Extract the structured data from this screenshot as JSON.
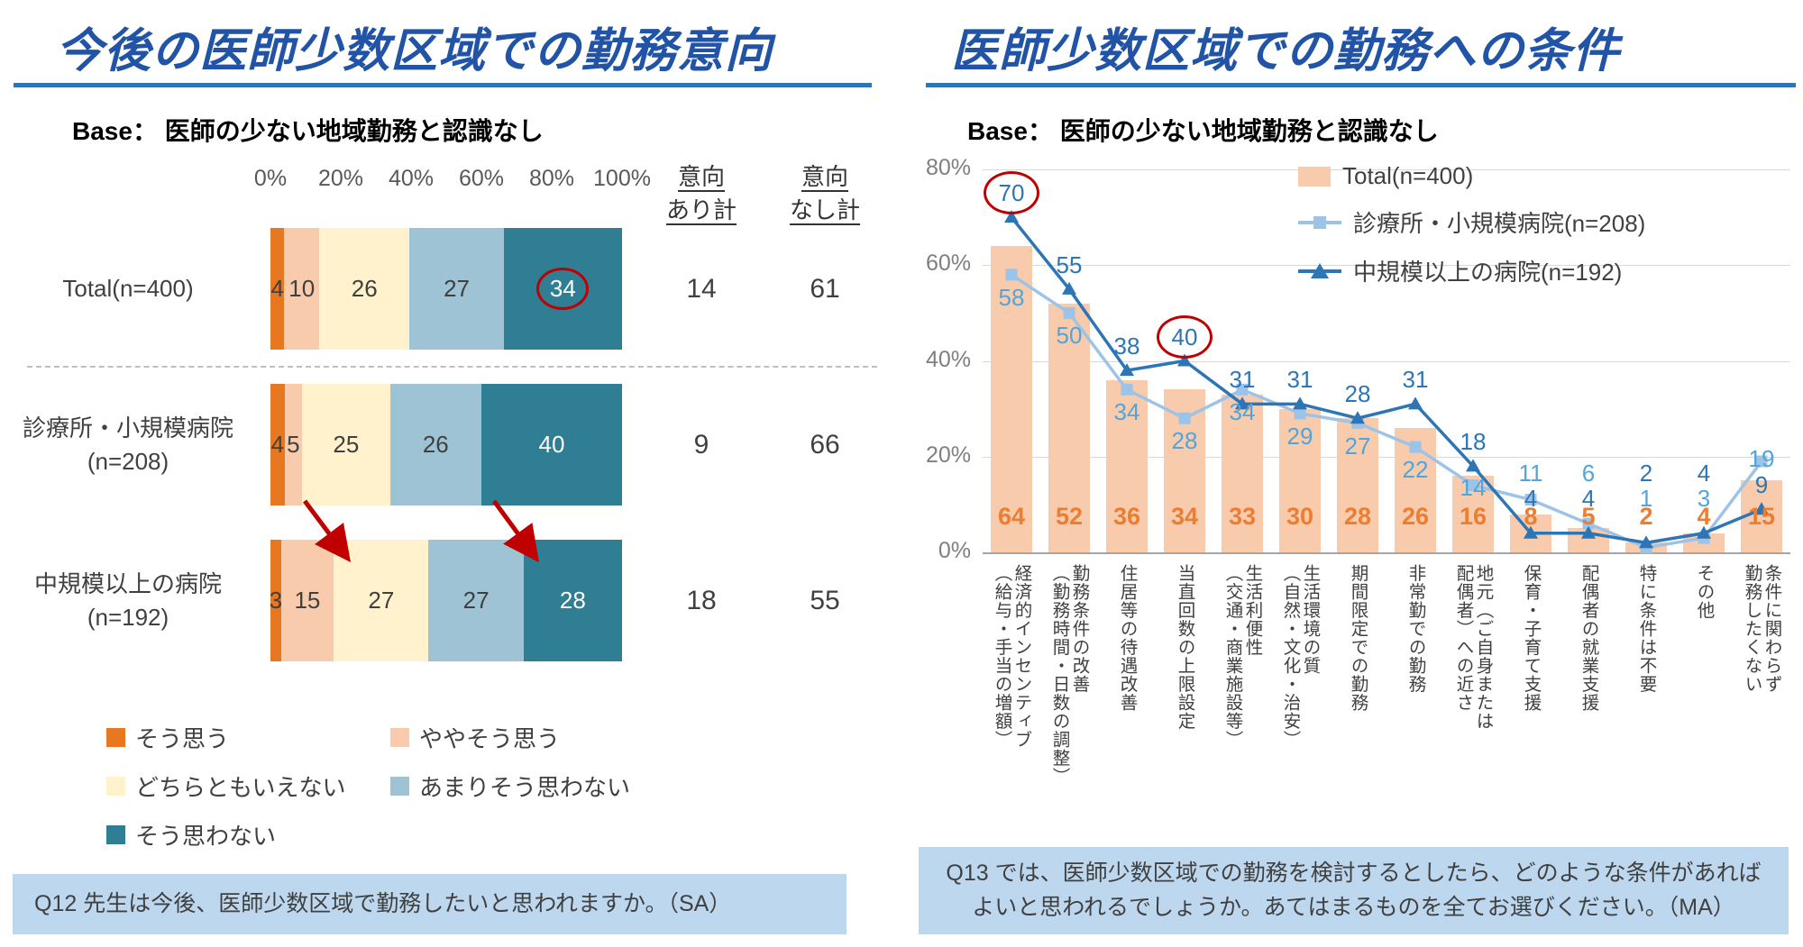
{
  "theme": {
    "accent_red": "#C00000",
    "title_blue": "#2154A6",
    "rule_blue": "#2E75B6",
    "question_bg": "#BDD7EE"
  },
  "left": {
    "title": "今後の医師少数区域での勤務意向",
    "base": "Base： 医師の少ない地域勤務と認識なし",
    "question": "Q12 先生は今後、医師少数区域で勤務したいと思われますか。（SA）"
  },
  "right": {
    "title": "医師少数区域での勤務への条件",
    "base": "Base： 医師の少ない地域勤務と認識なし",
    "question": "Q13 では、医師少数区域での勤務を検討するとしたら、どのような条件があればよいと思われるでしょうか。あてはまるものを全てお選びください。（MA）"
  },
  "chart_data": [
    {
      "type": "bar",
      "subtype": "horizontal-stacked-100",
      "title": "今後の医師少数区域での勤務意向",
      "x_axis_ticks": [
        "0%",
        "20%",
        "40%",
        "60%",
        "80%",
        "100%"
      ],
      "categories": [
        [
          "Total(n=400)"
        ],
        [
          "診療所・小規模病院",
          "(n=208)"
        ],
        [
          "中規模以上の病院",
          "(n=192)"
        ]
      ],
      "series": [
        {
          "name": "そう思う",
          "color": "#E87722",
          "values": [
            4,
            4,
            3
          ]
        },
        {
          "name": "ややそう思う",
          "color": "#F8CBAD",
          "values": [
            10,
            5,
            15
          ]
        },
        {
          "name": "どちらともいえない",
          "color": "#FFF2CC",
          "values": [
            26,
            25,
            27
          ]
        },
        {
          "name": "あまりそう思わない",
          "color": "#9DC3D5",
          "values": [
            27,
            26,
            27
          ]
        },
        {
          "name": "そう思わない",
          "color": "#2F7E93",
          "values": [
            34,
            40,
            28
          ]
        }
      ],
      "summary_columns": [
        {
          "header": [
            "意向",
            "あり計"
          ],
          "values": [
            14,
            9,
            18
          ]
        },
        {
          "header": [
            "意向",
            "なし計"
          ],
          "values": [
            61,
            66,
            55
          ]
        }
      ],
      "highlight": {
        "circled_value": {
          "row": 0,
          "series_index": 4,
          "value": 34
        },
        "red_shift_arrows": 2
      },
      "legend_position": "bottom"
    },
    {
      "type": "bar",
      "subtype": "bar-line-combo",
      "title": "医師少数区域での勤務への条件",
      "ylim": [
        0,
        80
      ],
      "y_ticks": [
        "0%",
        "20%",
        "40%",
        "60%",
        "80%"
      ],
      "grid": true,
      "legend_position": "top-right",
      "categories": [
        "経済的インセンティブ\n（給与・手当の増額）",
        "勤務条件の改善\n（勤務時間・日数の調整）",
        "住居等の待遇改善",
        "当直回数の上限設定",
        "生活利便性\n（交通・商業施設等）",
        "生活環境の質\n（自然・文化・治安）",
        "期間限定での勤務",
        "非常勤での勤務",
        "地元（ご自身または\n配偶者）への近さ",
        "保育・子育て支援",
        "配偶者の就業支援",
        "特に条件は不要",
        "その他",
        "条件に関わらず\n勤務したくない"
      ],
      "series": [
        {
          "name": "Total(n=400)",
          "type": "bar",
          "color": "#F8CBAD",
          "label_color": "#ED7D31",
          "values": [
            64,
            52,
            36,
            34,
            33,
            30,
            28,
            26,
            16,
            8,
            5,
            2,
            4,
            15
          ]
        },
        {
          "name": "診療所・小規模病院(n=208)",
          "type": "line",
          "marker": "square",
          "color": "#9DC3E6",
          "label_color": "#4FA5DC",
          "values": [
            58,
            50,
            34,
            28,
            34,
            29,
            27,
            22,
            14,
            11,
            6,
            1,
            3,
            19
          ]
        },
        {
          "name": "中規模以上の病院(n=192)",
          "type": "line",
          "marker": "triangle",
          "color": "#2E75B6",
          "label_color": "#2E75B6",
          "values": [
            70,
            55,
            38,
            40,
            31,
            31,
            28,
            31,
            18,
            4,
            4,
            2,
            4,
            9
          ]
        }
      ],
      "highlight": {
        "circled_values": [
          {
            "series": 2,
            "index": 0,
            "value": 70
          },
          {
            "series": 2,
            "index": 3,
            "value": 40
          }
        ]
      }
    }
  ]
}
